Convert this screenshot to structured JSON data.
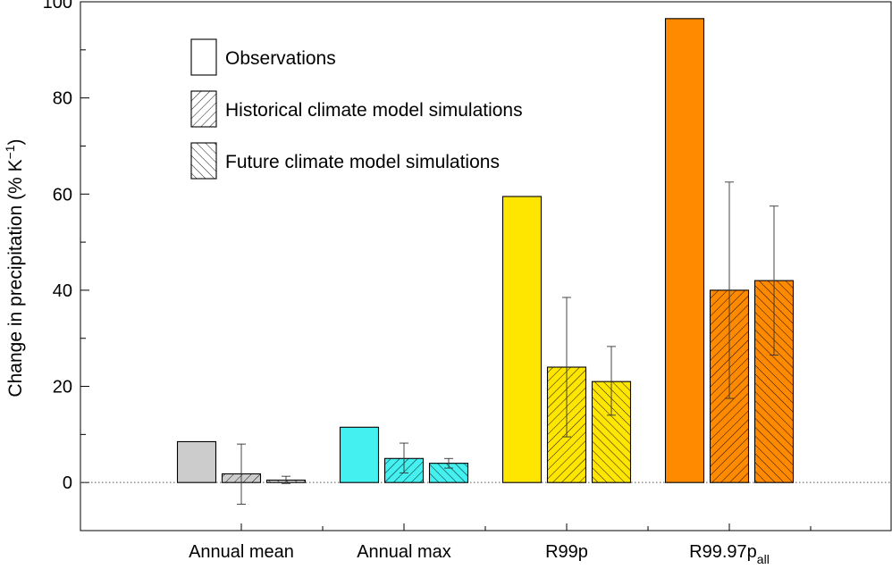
{
  "chart_data": {
    "type": "bar",
    "title": "",
    "xlabel": "",
    "ylabel": {
      "main": "Change in precipitation (% K",
      "superscript": "−1",
      "tail": ")"
    },
    "ylim": [
      -10,
      100
    ],
    "yticks": [
      0,
      20,
      40,
      60,
      80,
      100
    ],
    "grid": false,
    "zero_line": "dotted",
    "categories": [
      {
        "label": "Annual mean",
        "sub": "",
        "color": "#cccccc"
      },
      {
        "label": "Annual max",
        "sub": "",
        "color": "#44f0f0"
      },
      {
        "label": "R99p",
        "sub": "",
        "color": "#ffe600"
      },
      {
        "label": "R99.97p",
        "sub": "all",
        "color": "#ff8a00"
      }
    ],
    "series": [
      {
        "name": "Observations",
        "pattern": "solid",
        "values": [
          8.5,
          11.5,
          59.5,
          96.5
        ],
        "err_low": [
          null,
          null,
          null,
          null
        ],
        "err_high": [
          null,
          null,
          null,
          null
        ]
      },
      {
        "name": "Historical climate model simulations",
        "pattern": "hatch-back",
        "values": [
          1.8,
          5.0,
          24.0,
          40.0
        ],
        "err_low": [
          -4.5,
          2.0,
          9.5,
          17.5
        ],
        "err_high": [
          8.0,
          8.2,
          38.5,
          62.5
        ]
      },
      {
        "name": "Future climate model simulations",
        "pattern": "hatch-forward",
        "values": [
          0.5,
          4.0,
          21.0,
          42.0
        ],
        "err_low": [
          -0.2,
          3.0,
          14.0,
          26.5
        ],
        "err_high": [
          1.3,
          5.0,
          28.3,
          57.5
        ]
      }
    ],
    "legend": {
      "position": "top-left"
    }
  }
}
